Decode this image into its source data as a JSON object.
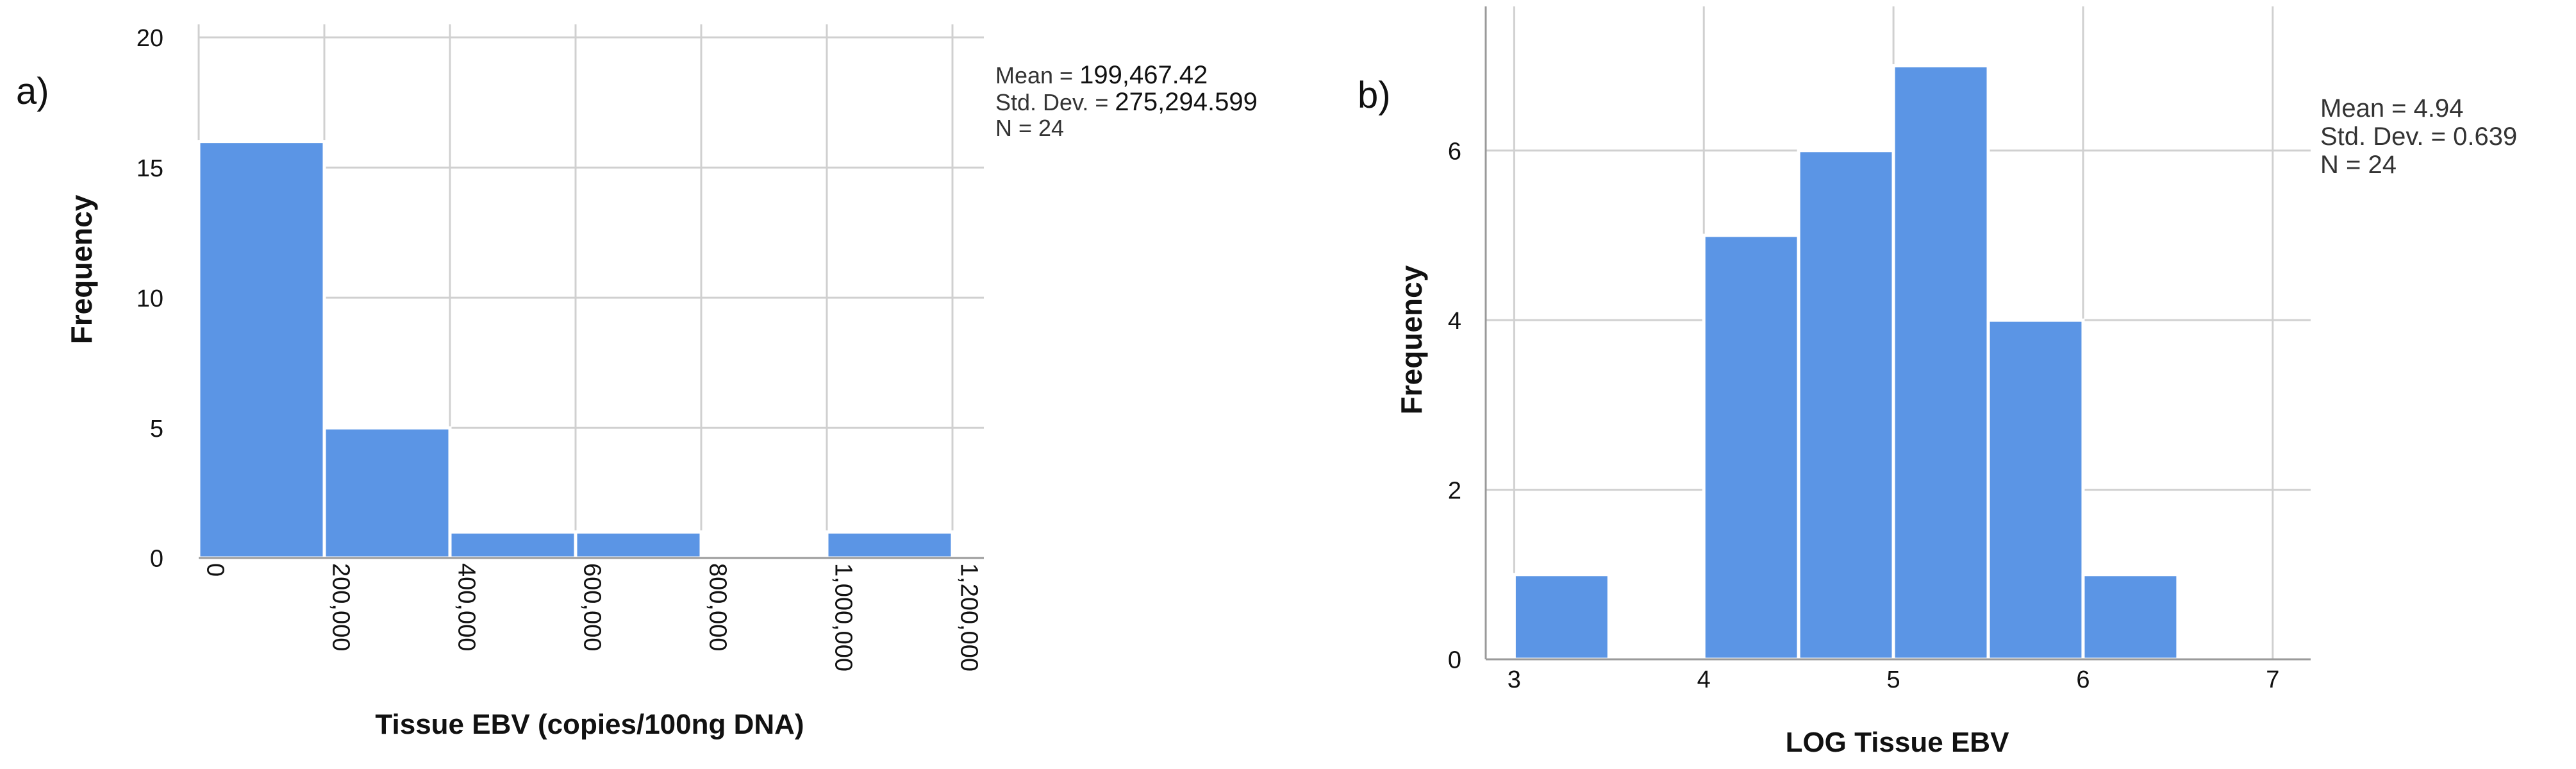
{
  "chart_data": [
    {
      "type": "bar",
      "panel_label": "a)",
      "xlabel": "Tissue EBV (copies/100ng DNA)",
      "ylabel": "Frequency",
      "bins": [
        {
          "start": 0,
          "end": 200000,
          "count": 16
        },
        {
          "start": 200000,
          "end": 400000,
          "count": 5
        },
        {
          "start": 400000,
          "end": 600000,
          "count": 1
        },
        {
          "start": 600000,
          "end": 800000,
          "count": 1
        },
        {
          "start": 800000,
          "end": 1000000,
          "count": 0
        },
        {
          "start": 1000000,
          "end": 1200000,
          "count": 1
        }
      ],
      "xlim": [
        0,
        1250000
      ],
      "ylim": [
        0,
        20.5
      ],
      "x_ticks": [
        {
          "value": 0,
          "label": "0"
        },
        {
          "value": 200000,
          "label": "200,000"
        },
        {
          "value": 400000,
          "label": "400,000"
        },
        {
          "value": 600000,
          "label": "600,000"
        },
        {
          "value": 800000,
          "label": "800,000"
        },
        {
          "value": 1000000,
          "label": "1,000,000"
        },
        {
          "value": 1200000,
          "label": "1,200,000"
        }
      ],
      "y_ticks": [
        {
          "value": 0,
          "label": "0"
        },
        {
          "value": 5,
          "label": "5"
        },
        {
          "value": 10,
          "label": "10"
        },
        {
          "value": 15,
          "label": "15"
        },
        {
          "value": 20,
          "label": "20"
        }
      ],
      "x_tick_rotation": "vertical",
      "grid": true,
      "stats": {
        "mean_label": "Mean = ",
        "mean_value": "199,467.42",
        "sd_label": "Std. Dev. = ",
        "sd_value": "275,294.599",
        "n_label": "N = 24"
      },
      "bar_color": "#5b95e5",
      "grid_color": "#d0d0d0"
    },
    {
      "type": "bar",
      "panel_label": "b)",
      "xlabel": "LOG Tissue EBV",
      "ylabel": "Frequency",
      "bins": [
        {
          "start": 3.0,
          "end": 3.5,
          "count": 1
        },
        {
          "start": 3.5,
          "end": 4.0,
          "count": 0
        },
        {
          "start": 4.0,
          "end": 4.5,
          "count": 5
        },
        {
          "start": 4.5,
          "end": 5.0,
          "count": 6
        },
        {
          "start": 5.0,
          "end": 5.5,
          "count": 7
        },
        {
          "start": 5.5,
          "end": 6.0,
          "count": 4
        },
        {
          "start": 6.0,
          "end": 6.5,
          "count": 1
        }
      ],
      "xlim": [
        2.85,
        7.2
      ],
      "ylim": [
        0,
        7.7
      ],
      "x_ticks": [
        {
          "value": 3,
          "label": "3"
        },
        {
          "value": 4,
          "label": "4"
        },
        {
          "value": 5,
          "label": "5"
        },
        {
          "value": 6,
          "label": "6"
        },
        {
          "value": 7,
          "label": "7"
        }
      ],
      "y_ticks": [
        {
          "value": 0,
          "label": "0"
        },
        {
          "value": 2,
          "label": "2"
        },
        {
          "value": 4,
          "label": "4"
        },
        {
          "value": 6,
          "label": "6"
        }
      ],
      "x_tick_rotation": "horizontal",
      "grid": true,
      "stats": {
        "mean_label": "Mean = 4.94",
        "mean_value": "",
        "sd_label": "Std. Dev. = 0.639",
        "sd_value": "",
        "n_label": "N = 24"
      },
      "bar_color": "#5b95e5",
      "grid_color": "#d0d0d0"
    }
  ]
}
